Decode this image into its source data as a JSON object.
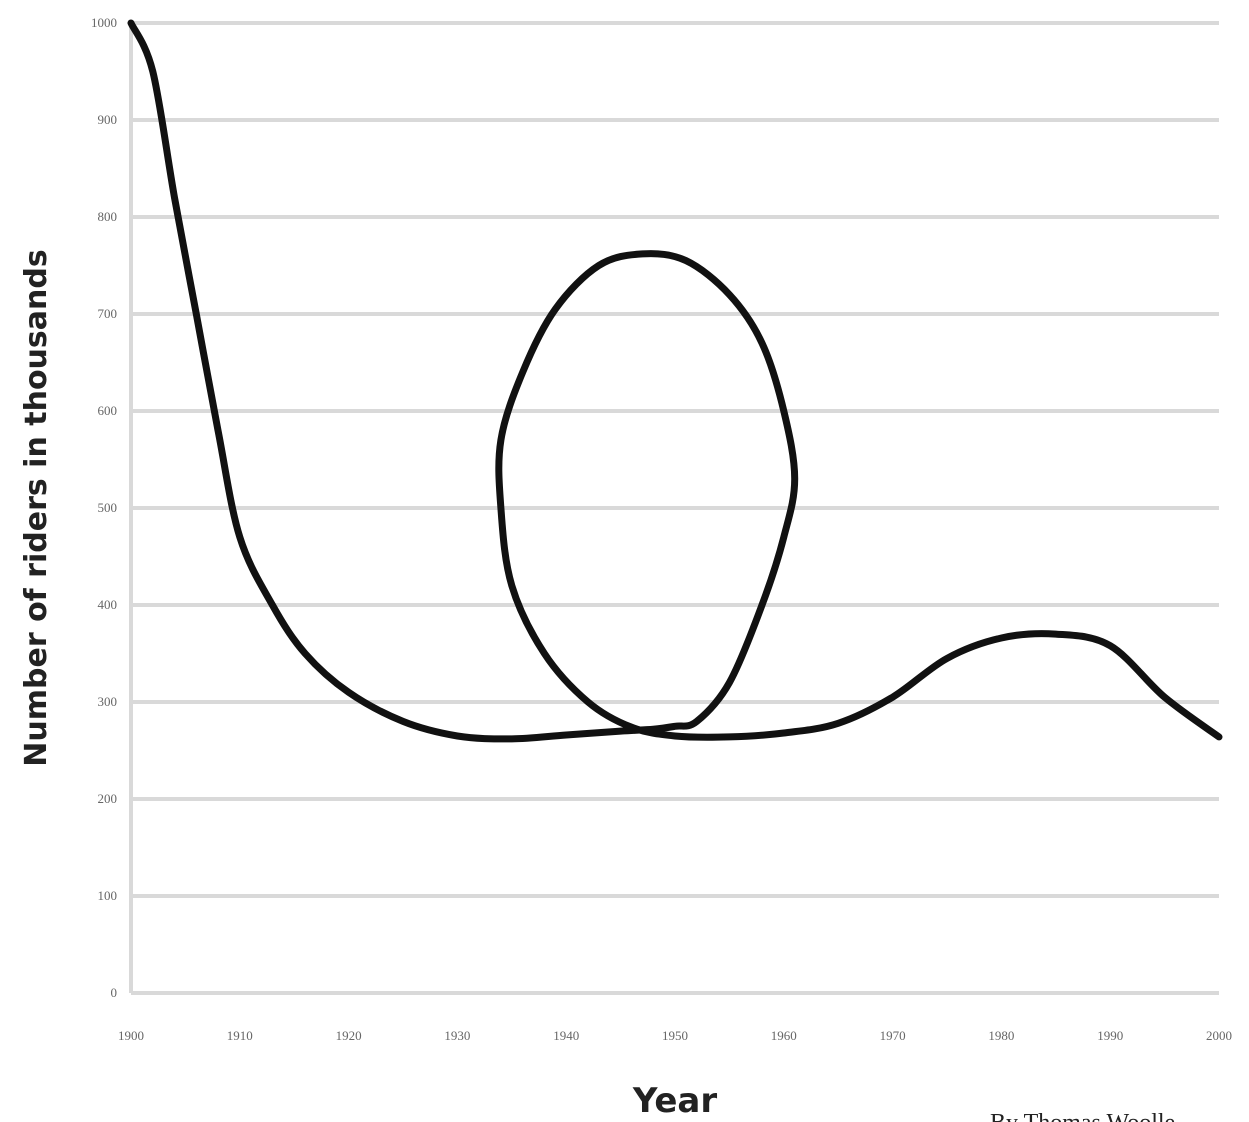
{
  "chart_data": {
    "type": "line",
    "title": "",
    "xlabel": "Year",
    "ylabel": "Number of riders in thousands",
    "xlim": [
      1900,
      2000
    ],
    "ylim": [
      0,
      1000
    ],
    "x_ticks": [
      1900,
      1910,
      1920,
      1930,
      1940,
      1950,
      1960,
      1970,
      1980,
      1990,
      2000
    ],
    "y_ticks": [
      0,
      100,
      200,
      300,
      400,
      500,
      600,
      700,
      800,
      900,
      1000
    ],
    "grid": true,
    "legend": "none",
    "series": [
      {
        "color": "#111111",
        "points": [
          [
            1900,
            1000
          ],
          [
            1902,
            950
          ],
          [
            1904,
            820
          ],
          [
            1906,
            700
          ],
          [
            1908,
            580
          ],
          [
            1910,
            470
          ],
          [
            1913,
            400
          ],
          [
            1916,
            350
          ],
          [
            1920,
            310
          ],
          [
            1925,
            280
          ],
          [
            1930,
            265
          ],
          [
            1935,
            262
          ],
          [
            1940,
            266
          ],
          [
            1945,
            270
          ],
          [
            1948,
            272
          ],
          [
            1950,
            275
          ],
          [
            1952,
            280
          ],
          [
            1955,
            320
          ],
          [
            1958,
            400
          ],
          [
            1960,
            470
          ],
          [
            1961,
            530
          ],
          [
            1960,
            600
          ],
          [
            1958,
            670
          ],
          [
            1955,
            720
          ],
          [
            1951,
            755
          ],
          [
            1947,
            762
          ],
          [
            1943,
            750
          ],
          [
            1939,
            705
          ],
          [
            1936,
            640
          ],
          [
            1934,
            570
          ],
          [
            1934,
            500
          ],
          [
            1935,
            420
          ],
          [
            1938,
            350
          ],
          [
            1942,
            300
          ],
          [
            1946,
            274
          ],
          [
            1950,
            265
          ],
          [
            1955,
            264
          ],
          [
            1960,
            268
          ],
          [
            1965,
            278
          ],
          [
            1970,
            305
          ],
          [
            1975,
            345
          ],
          [
            1980,
            366
          ],
          [
            1985,
            370
          ],
          [
            1990,
            358
          ],
          [
            1995,
            305
          ],
          [
            2000,
            264
          ]
        ]
      }
    ]
  },
  "credit": "By Thomas Woolle"
}
